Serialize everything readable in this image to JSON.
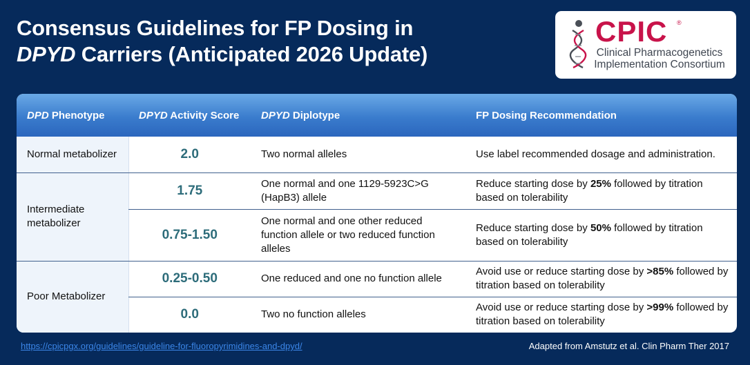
{
  "title": {
    "line1": "Consensus Guidelines for FP Dosing in",
    "line2_italic": "DPYD",
    "line2_rest": " Carriers (Anticipated 2026 Update)"
  },
  "logo": {
    "word": "CPIC",
    "registered": "®",
    "sub1": "Clinical Pharmacogenetics",
    "sub2": "Implementation Consortium"
  },
  "table": {
    "headers": {
      "phenotype_italic": "DPD",
      "phenotype_rest": " Phenotype",
      "score_italic": "DPYD",
      "score_rest": " Activity Score",
      "diplotype_italic": "DPYD",
      "diplotype_rest": " Diplotype",
      "recommendation": "FP Dosing Recommendation"
    },
    "groups": [
      {
        "phenotype": "Normal metabolizer"
      },
      {
        "phenotype": "Intermediate metabolizer"
      },
      {
        "phenotype": "Poor Metabolizer"
      }
    ],
    "rows": [
      {
        "score": "2.0",
        "diplotype": "Two normal alleles",
        "rec_pre": "Use label recommended dosage and administration.",
        "rec_bold": "",
        "rec_post": ""
      },
      {
        "score": "1.75",
        "diplotype": "One normal and one 1129-5923C>G (HapB3) allele",
        "rec_pre": "Reduce starting dose by ",
        "rec_bold": "25%",
        "rec_post": " followed by titration based on tolerability"
      },
      {
        "score": "0.75-1.50",
        "diplotype": "One normal and one other reduced function allele or two reduced function alleles",
        "rec_pre": "Reduce starting dose by ",
        "rec_bold": "50%",
        "rec_post": " followed by titration based on tolerability"
      },
      {
        "score": "0.25-0.50",
        "diplotype": "One reduced and one no function allele",
        "rec_pre": "Avoid use or reduce starting dose by ",
        "rec_bold": ">85%",
        "rec_post": " followed by titration based on tolerability"
      },
      {
        "score": "0.0",
        "diplotype": "Two no function alleles",
        "rec_pre": "Avoid use or reduce starting dose by ",
        "rec_bold": ">99%",
        "rec_post": " followed by titration based on tolerability"
      }
    ]
  },
  "footer": {
    "link": "https://cpicpgx.org/guidelines/guideline-for-fluoropyrimidines-and-dpyd/",
    "note": "Adapted from Amstutz et al. Clin Pharm Ther 2017"
  }
}
